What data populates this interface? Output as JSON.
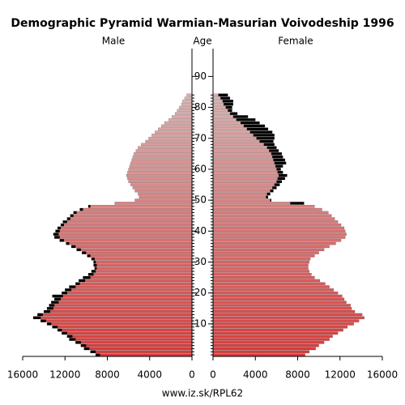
{
  "chart_data": {
    "type": "pyramid",
    "title": "Demographic Pyramid Warmian-Masurian Voivodeship 1996",
    "left_label": "Male",
    "center_label": "Age",
    "right_label": "Female",
    "footer": "www.iz.sk/RPL62",
    "ages": [
      0,
      1,
      2,
      3,
      4,
      5,
      6,
      7,
      8,
      9,
      10,
      11,
      12,
      13,
      14,
      15,
      16,
      17,
      18,
      19,
      20,
      21,
      22,
      23,
      24,
      25,
      26,
      27,
      28,
      29,
      30,
      31,
      32,
      33,
      34,
      35,
      36,
      37,
      38,
      39,
      40,
      41,
      42,
      43,
      44,
      45,
      46,
      47,
      48,
      49,
      50,
      51,
      52,
      53,
      54,
      55,
      56,
      57,
      58,
      59,
      60,
      61,
      62,
      63,
      64,
      65,
      66,
      67,
      68,
      69,
      70,
      71,
      72,
      73,
      74,
      75,
      76,
      77,
      78,
      79,
      80,
      81,
      82,
      83,
      84
    ],
    "age_lim": [
      -0.5,
      99
    ],
    "age_ticks": [
      10,
      20,
      30,
      40,
      50,
      60,
      70,
      80,
      90
    ],
    "xlim": [
      0,
      16000
    ],
    "xticks": [
      0,
      4000,
      8000,
      12000,
      16000
    ],
    "excess_color": "#000000",
    "series": [
      {
        "name": "Male",
        "side": "left",
        "color": "#d83a3a",
        "color_end": "#d8b4b4",
        "values": [
          9100,
          9600,
          10200,
          10500,
          11000,
          11600,
          11800,
          12300,
          12700,
          13200,
          13700,
          14300,
          15000,
          14600,
          14000,
          13700,
          13500,
          13300,
          13000,
          13200,
          12300,
          12000,
          11600,
          11000,
          10700,
          10300,
          9800,
          9500,
          9200,
          9300,
          9300,
          9500,
          9900,
          10400,
          10900,
          11400,
          11900,
          12500,
          13000,
          13100,
          12900,
          12700,
          12400,
          12200,
          11800,
          11500,
          11200,
          10600,
          9800,
          7300,
          5400,
          5000,
          5100,
          5400,
          5600,
          5800,
          6000,
          6100,
          6200,
          6100,
          6000,
          5900,
          5800,
          5700,
          5600,
          5500,
          5300,
          5100,
          4800,
          4400,
          4100,
          3800,
          3500,
          3200,
          2900,
          2600,
          2200,
          1900,
          1600,
          1400,
          1200,
          1000,
          900,
          700,
          500
        ]
      },
      {
        "name": "Female",
        "side": "right",
        "color": "#d83a3a",
        "color_end": "#d8b4b4",
        "values": [
          8700,
          9100,
          9700,
          10000,
          10500,
          11000,
          11300,
          11800,
          12300,
          12700,
          13300,
          13800,
          14300,
          14100,
          13400,
          13100,
          13000,
          12600,
          12400,
          12200,
          11800,
          11400,
          11000,
          10600,
          10100,
          9600,
          9300,
          9100,
          9000,
          9000,
          9100,
          9200,
          9600,
          10000,
          10500,
          11000,
          11600,
          12100,
          12500,
          12600,
          12500,
          12400,
          12100,
          11800,
          11500,
          11200,
          10900,
          10300,
          9600,
          8600,
          5500,
          5200,
          5400,
          5700,
          6000,
          6300,
          6500,
          6800,
          7000,
          6600,
          6400,
          6600,
          6900,
          6800,
          6600,
          6500,
          6200,
          6000,
          5800,
          5700,
          5800,
          5800,
          5600,
          5200,
          4900,
          4400,
          4000,
          3300,
          2300,
          1800,
          1800,
          1900,
          1900,
          1600,
          1400
        ]
      }
    ]
  }
}
